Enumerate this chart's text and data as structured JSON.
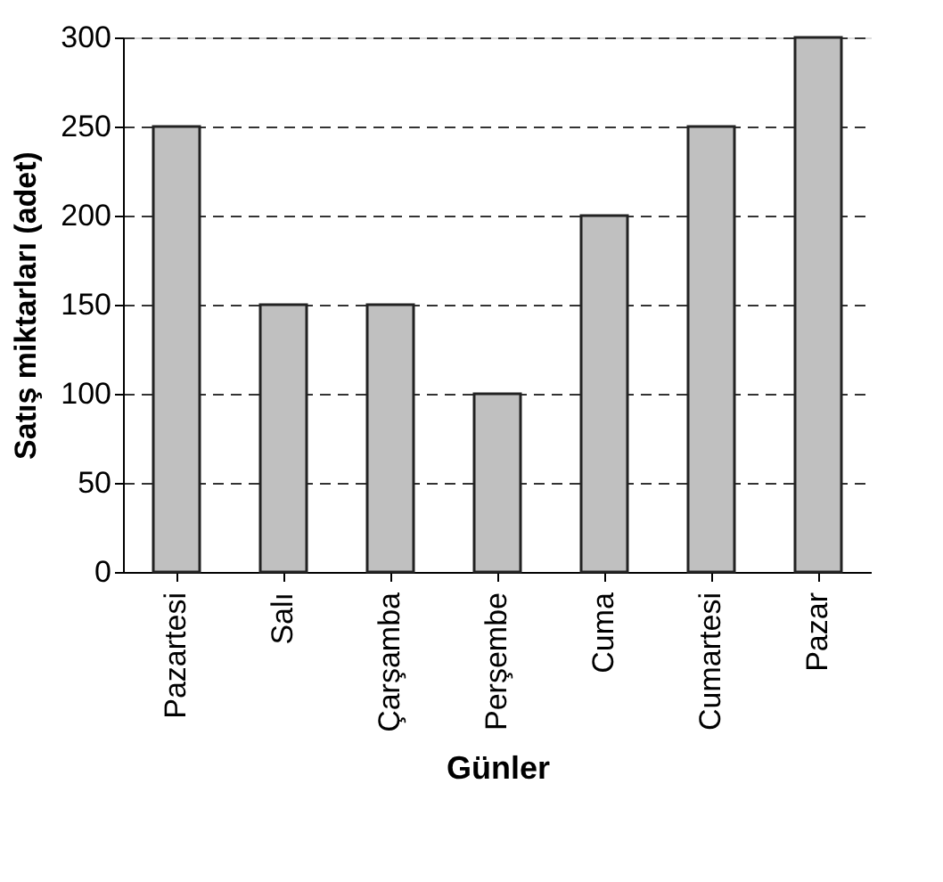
{
  "chart_data": {
    "type": "bar",
    "xlabel": "Günler",
    "ylabel": "Satış miktarları (adet)",
    "categories": [
      "Pazartesi",
      "Salı",
      "Çarşamba",
      "Perşembe",
      "Cuma",
      "Cumartesi",
      "Pazar"
    ],
    "values": [
      250,
      150,
      150,
      100,
      200,
      250,
      300
    ],
    "color": "#c0c0c0",
    "ylim": [
      0,
      300
    ],
    "yticks": [
      0,
      50,
      100,
      150,
      200,
      250,
      300
    ],
    "grid": "y",
    "line_style": "dashed"
  }
}
